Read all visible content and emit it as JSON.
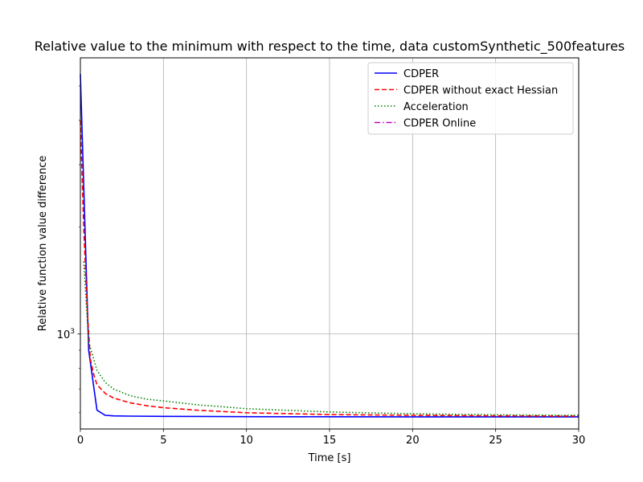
{
  "chart_data": {
    "type": "line",
    "title": "Relative value to the minimum with respect to the time, data customSynthetic_500features",
    "xlabel": "Time [s]",
    "ylabel": "Relative function value difference",
    "xlim": [
      0,
      30
    ],
    "ylim": [
      540,
      6000
    ],
    "yscale": "log",
    "grid": true,
    "legend_position": "upper right",
    "x_ticks": [
      0,
      5,
      10,
      15,
      20,
      25,
      30
    ],
    "x_tick_labels": [
      "0",
      "5",
      "10",
      "15",
      "20",
      "25",
      "30"
    ],
    "y_major_ticks": [
      1000
    ],
    "y_major_tick_labels": [
      "10"
    ],
    "y_major_tick_exponents": [
      "3"
    ],
    "y_minor_ticks": [
      600,
      700,
      800,
      900,
      2000,
      3000,
      4000,
      5000
    ],
    "series": [
      {
        "name": "CDPER",
        "color": "#0000ff",
        "linestyle": "solid",
        "x": [
          0,
          0.5,
          1.0,
          1.5,
          2.0,
          3.0,
          5.0,
          10.0,
          15.0,
          20.0,
          25.0,
          30.0
        ],
        "y": [
          5400,
          900,
          610,
          590,
          588,
          587,
          586,
          585,
          584.5,
          584,
          584,
          584
        ]
      },
      {
        "name": "CDPER without exact Hessian",
        "color": "#ff0000",
        "linestyle": "dashed",
        "x": [
          0,
          0.2,
          0.4,
          0.6,
          0.8,
          1.0,
          1.5,
          2.0,
          3.0,
          4.0,
          5.0,
          7.0,
          10.0,
          15.0,
          20.0,
          25.0,
          30.0
        ],
        "y": [
          4000,
          2000,
          1200,
          850,
          770,
          720,
          680,
          660,
          640,
          628,
          620,
          610,
          600,
          593,
          590,
          588,
          587
        ]
      },
      {
        "name": "Acceleration",
        "color": "#008000",
        "linestyle": "dotted",
        "x": [
          0.2,
          0.5,
          1.0,
          1.5,
          2.0,
          3.0,
          4.0,
          5.0,
          7.0,
          10.0,
          15.0,
          20.0,
          25.0,
          30.0
        ],
        "y": [
          1600,
          950,
          790,
          730,
          700,
          670,
          655,
          648,
          632,
          616,
          603,
          596,
          592,
          590
        ]
      },
      {
        "name": "CDPER Online",
        "color": "#bf00bf",
        "linestyle": "dashdot",
        "x": [],
        "y": []
      }
    ]
  }
}
